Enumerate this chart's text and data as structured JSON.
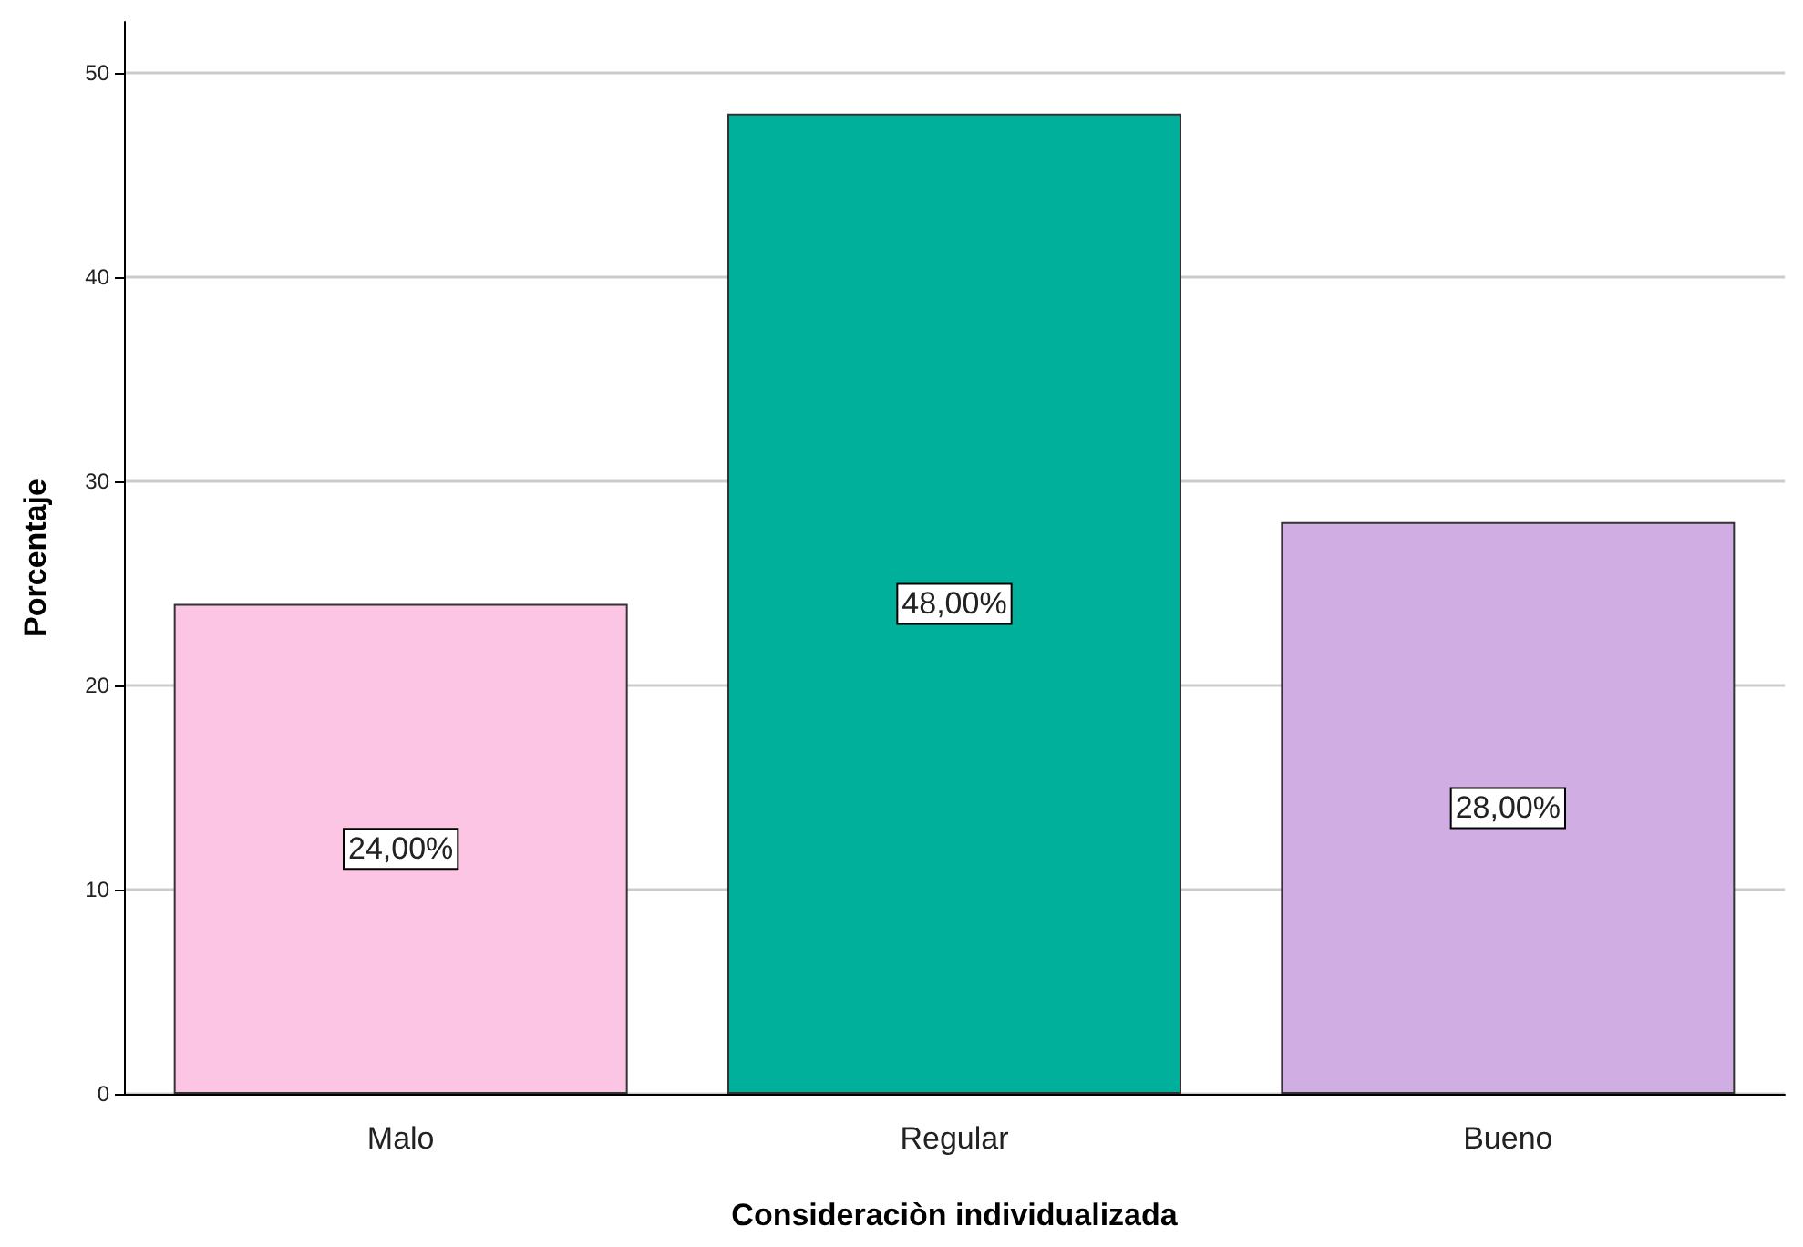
{
  "chart_data": {
    "type": "bar",
    "xlabel": "Consideraciòn individualizada",
    "ylabel": "Porcentaje",
    "categories": [
      "Malo",
      "Regular",
      "Bueno"
    ],
    "values": [
      24,
      48,
      28
    ],
    "colors": [
      "#fcc5e3",
      "#00b09b",
      "#d0ade3"
    ],
    "value_labels": [
      "24,00%",
      "48,00%",
      "28,00%"
    ],
    "ylim": [
      0,
      52.5
    ],
    "yticks": [
      0,
      10,
      20,
      30,
      40,
      50
    ],
    "grid": "y"
  }
}
